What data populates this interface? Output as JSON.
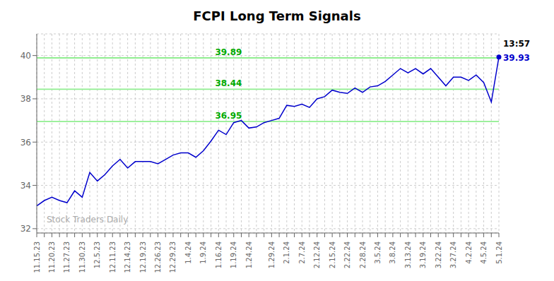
{
  "chart_data": {
    "type": "line",
    "title": "FCPI Long Term Signals",
    "categories": [
      "11.15.23",
      null,
      "11.20.23",
      null,
      "11.27.23",
      null,
      "11.30.23",
      null,
      "12.5.23",
      null,
      "12.11.23",
      null,
      "12.14.23",
      null,
      "12.19.23",
      null,
      "12.26.23",
      null,
      "12.29.23",
      null,
      "1.4.24",
      null,
      "1.9.24",
      null,
      "1.16.24",
      null,
      "1.19.24",
      null,
      "1.24.24",
      null,
      null,
      "1.29.24",
      null,
      "2.1.24",
      null,
      "2.7.24",
      null,
      "2.12.24",
      null,
      "2.15.24",
      null,
      "2.22.24",
      null,
      "2.28.24",
      null,
      "3.5.24",
      null,
      "3.8.24",
      null,
      "3.13.24",
      null,
      "3.19.24",
      null,
      "3.22.24",
      null,
      "3.27.24",
      null,
      "4.2.24",
      null,
      "4.5.24",
      null,
      "5.1.24"
    ],
    "values": [
      33.05,
      33.3,
      33.45,
      33.3,
      33.2,
      33.75,
      33.45,
      34.6,
      34.2,
      34.5,
      34.9,
      35.2,
      34.8,
      35.1,
      35.1,
      35.1,
      35.0,
      35.2,
      35.4,
      35.5,
      35.5,
      35.3,
      35.6,
      36.05,
      36.55,
      36.35,
      36.9,
      37.0,
      36.65,
      36.7,
      36.9,
      37.0,
      37.1,
      37.7,
      37.65,
      37.75,
      37.6,
      38.0,
      38.1,
      38.4,
      38.3,
      38.25,
      38.5,
      38.3,
      38.55,
      38.6,
      38.8,
      39.1,
      39.4,
      39.2,
      39.4,
      39.15,
      39.4,
      39.0,
      38.6,
      39.0,
      39.0,
      38.85,
      39.1,
      38.75,
      37.85,
      39.93
    ],
    "color": "#0000CC",
    "marker": "last",
    "ylim": [
      31.8,
      41.0
    ],
    "yticks": [
      32,
      34,
      36,
      38,
      40
    ],
    "grid": true,
    "hlines": [
      {
        "value": 39.89,
        "label": "39.89",
        "color": "#90EE90",
        "label_color": "#00AA00"
      },
      {
        "value": 38.44,
        "label": "38.44",
        "color": "#90EE90",
        "label_color": "#00AA00"
      },
      {
        "value": 36.95,
        "label": "36.95",
        "color": "#90EE90",
        "label_color": "#00AA00"
      }
    ],
    "annotations": [
      {
        "text": "13:57",
        "color": "#000000"
      },
      {
        "text": "39.93",
        "color": "#0000CC"
      }
    ],
    "watermark": "Stock Traders Daily"
  }
}
